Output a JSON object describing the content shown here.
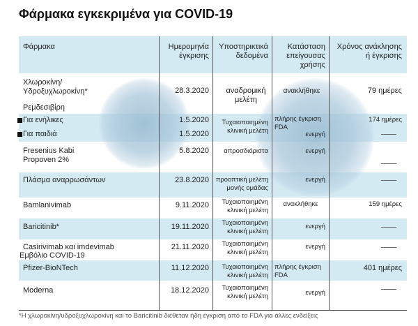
{
  "title": "Φάρμακα εγκεκριμένα για COVID-19",
  "headers": [
    "Φάρμακα",
    "Ημερομηνία έγκρισης",
    "Υποστηρικτικά δεδομένα",
    "Κατάσταση επείγουσας χρήσης",
    "Χρόνος ανάκλησης ή έγκρισης"
  ],
  "rows": {
    "chloro": {
      "name": "Χλωροκίνη/ Υδροξυχλωροκίνη*",
      "date": "28.3.2020",
      "data": "αναδρομική μελέτη",
      "status": "ανακλήθηκε",
      "time": "79 ημέρες"
    },
    "remdesivir_label": "Ρεμδεσιβίρη",
    "remd_adults": {
      "name": "Για ενήλικες",
      "date": "1.5.2020",
      "time": "174 ημέρες"
    },
    "remd_children": {
      "name": "Για παιδιά",
      "date": "1.5.2020",
      "status": "ενεργή"
    },
    "remd_data": "Τυχαιοποιημένη κλινική μελέτη",
    "remd_status": "πλήρης έγκριση FDA",
    "fresenius": {
      "name": "Fresenius Kabi Propoven 2%",
      "date": "5.8.2020",
      "data": "απροσδιόριστα",
      "status": "ενεργή"
    },
    "plasma": {
      "name": "Πλάσμα αναρρωσάντων",
      "date": "23.8.2020",
      "data": "προοπτική μελέτη μονής ομάδας",
      "status": "ενεργή"
    },
    "bamlanivimab": {
      "name": "Bamlanivimab",
      "date": "9.11.2020",
      "data": "Τυχαιοποιημένη κλινική μελέτη",
      "status": "ανακλήθηκε",
      "time": "159 ημέρες"
    },
    "baricitinib": {
      "name": "Baricitinib*",
      "date": "19.11.2020",
      "data": "Τυχαιοποιημένη κλινική μελέτη",
      "status": "ενεργή"
    },
    "casirivimab": {
      "name": "Casirivimab και imdevimab",
      "date": "21.11.2020",
      "data": "Τυχαιοποιημένη κλινική μελέτη",
      "status": "ενεργή"
    },
    "vaccine_label": "Εμβόλιο COVID-19",
    "pfizer": {
      "name": "Pfizer-BioNTech",
      "date": "11.12.2020",
      "data": "Τυχαιοποιημένη κλινική μελέτη",
      "status": "πλήρης έγκριση FDA",
      "time": "401 ημέρες"
    },
    "moderna": {
      "name": "Moderna",
      "date": "18.12.2020",
      "data": "Τυχαιοποιημένη κλινική μελέτη",
      "status": "ενεργή"
    }
  },
  "footnote": "*Η χλωροκίνη/υδροξυχλωροκίνη και το Baricitinib διέθεταν ήδη έγκριση από το FDA για άλλες ενδείξεις"
}
